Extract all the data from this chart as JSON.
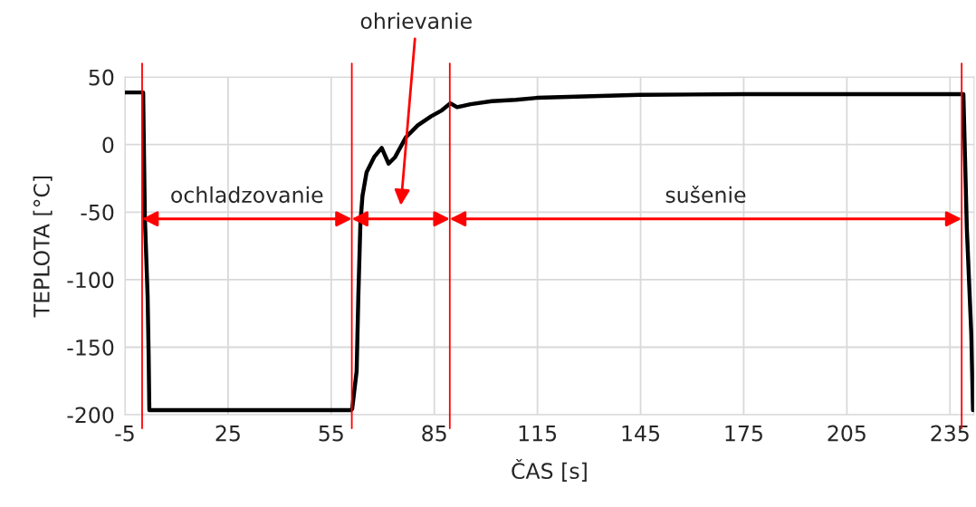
{
  "chart_data": {
    "type": "line",
    "xlabel": "ČAS [s]",
    "ylabel": "TEPLOTA [°C]",
    "x": [
      -5,
      0.3,
      0.8,
      1.6,
      1.9,
      2.1,
      60.8,
      61.1,
      62.4,
      62.9,
      63.5,
      64.1,
      65.3,
      67.5,
      69.7,
      71.7,
      73.6,
      76.7,
      80.2,
      84.1,
      87.2,
      89.7,
      91.6,
      95.5,
      101.7,
      108.7,
      114.8,
      144.7,
      174.8,
      238.9,
      239.9,
      241.2,
      241.7
    ],
    "series": [
      {
        "color": "#000000",
        "values": [
          38.6,
          38.6,
          -54,
          -112,
          -156,
          -196.6,
          -196.6,
          -195.8,
          -167.8,
          -112,
          -58,
          -38,
          -20.4,
          -9.2,
          -2.5,
          -14.1,
          -9.2,
          5.3,
          14.3,
          21,
          25.4,
          30.6,
          27.7,
          29.9,
          32.1,
          33.2,
          34.6,
          36.9,
          37.3,
          37.3,
          -62,
          -140,
          -196.6
        ]
      }
    ],
    "xlim": [
      -5,
      242
    ],
    "xticks": [
      -5,
      25,
      55,
      85,
      115,
      145,
      175,
      205,
      235
    ],
    "ylim": [
      -200,
      50
    ],
    "yticks": [
      -200,
      -150,
      -100,
      -50,
      0,
      50
    ],
    "grid": true,
    "marker": "none",
    "line_style": "solid",
    "ref_lines": [
      {
        "axis": "x",
        "value": 0,
        "color": "#ff0000"
      },
      {
        "axis": "x",
        "value": 61,
        "color": "#ff0000"
      },
      {
        "axis": "x",
        "value": 89.5,
        "color": "#ff0000"
      },
      {
        "axis": "x",
        "value": 238.4,
        "color": "#ff0000"
      }
    ],
    "annotations": [
      "ochladzovanie",
      "ohrievanie",
      "sušenie"
    ]
  }
}
